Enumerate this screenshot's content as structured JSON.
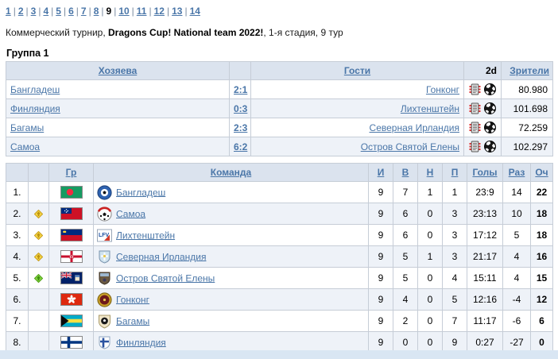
{
  "pagination": {
    "pages": [
      "1",
      "2",
      "3",
      "4",
      "5",
      "6",
      "7",
      "8",
      "9",
      "10",
      "11",
      "12",
      "13",
      "14"
    ],
    "current": "9"
  },
  "title": {
    "prefix": "Коммерческий турнир, ",
    "tournament": "Dragons Cup! National team 2022!",
    "suffix": ", 1-я стадия, 9 тур"
  },
  "group": {
    "heading": "Группа 1",
    "results": {
      "headers": {
        "hosts": "Хозяева",
        "guests": "Гости",
        "viewer2d": "2d",
        "spectators": "Зрители"
      },
      "icons": {
        "report": "match-report-icon",
        "ball": "soccer-ball-2d-icon"
      },
      "matches": [
        {
          "host": "Бангладеш",
          "score": "2:1",
          "guest": "Гонконг",
          "attendance": "80.980"
        },
        {
          "host": "Финляндия",
          "score": "0:3",
          "guest": "Лихтенштейн",
          "attendance": "101.698"
        },
        {
          "host": "Багамы",
          "score": "2:3",
          "guest": "Северная Ирландия",
          "attendance": "72.259"
        },
        {
          "host": "Самоа",
          "score": "6:2",
          "guest": "Остров Святой Елены",
          "attendance": "102.297"
        }
      ]
    },
    "standings": {
      "headers": {
        "group": "Гр",
        "team": "Команда",
        "played": "И",
        "won": "В",
        "drawn": "Н",
        "lost": "П",
        "goals": "Голы",
        "diff": "Раз",
        "points": "Оч"
      },
      "rows": [
        {
          "pos": "1.",
          "arrow": "",
          "flag": "bangladesh",
          "logo": "bangladesh",
          "team": "Бангладеш",
          "played": "9",
          "won": "7",
          "drawn": "1",
          "lost": "1",
          "goals": "23:9",
          "diff": "14",
          "points": "22"
        },
        {
          "pos": "2.",
          "arrow": "gold",
          "flag": "samoa",
          "logo": "samoa",
          "team": "Самоа",
          "played": "9",
          "won": "6",
          "drawn": "0",
          "lost": "3",
          "goals": "23:13",
          "diff": "10",
          "points": "18"
        },
        {
          "pos": "3.",
          "arrow": "gold",
          "flag": "liechtenstein",
          "logo": "liechtenstein",
          "team": "Лихтенштейн",
          "played": "9",
          "won": "6",
          "drawn": "0",
          "lost": "3",
          "goals": "17:12",
          "diff": "5",
          "points": "18"
        },
        {
          "pos": "4.",
          "arrow": "gold",
          "flag": "n_ireland",
          "logo": "n_ireland",
          "team": "Северная Ирландия",
          "played": "9",
          "won": "5",
          "drawn": "1",
          "lost": "3",
          "goals": "21:17",
          "diff": "4",
          "points": "16"
        },
        {
          "pos": "5.",
          "arrow": "green",
          "flag": "st_helena",
          "logo": "st_helena",
          "team": "Остров Святой Елены",
          "played": "9",
          "won": "5",
          "drawn": "0",
          "lost": "4",
          "goals": "15:11",
          "diff": "4",
          "points": "15"
        },
        {
          "pos": "6.",
          "arrow": "",
          "flag": "hong_kong",
          "logo": "hong_kong",
          "team": "Гонконг",
          "played": "9",
          "won": "4",
          "drawn": "0",
          "lost": "5",
          "goals": "12:16",
          "diff": "-4",
          "points": "12"
        },
        {
          "pos": "7.",
          "arrow": "",
          "flag": "bahamas",
          "logo": "bahamas",
          "team": "Багамы",
          "played": "9",
          "won": "2",
          "drawn": "0",
          "lost": "7",
          "goals": "11:17",
          "diff": "-6",
          "points": "6"
        },
        {
          "pos": "8.",
          "arrow": "",
          "flag": "finland",
          "logo": "finland",
          "team": "Финляндия",
          "played": "9",
          "won": "0",
          "drawn": "0",
          "lost": "9",
          "goals": "0:27",
          "diff": "-27",
          "points": "0"
        }
      ]
    }
  },
  "colors": {
    "link": "#4a76a8",
    "header_bg": "#dbe3ee",
    "row_alt_bg": "#eef2f8",
    "border": "#c6cdd7",
    "bottom_strip": "#d9e6f3",
    "gold_arrow": "#ffe14d",
    "green_arrow": "#8ce04a"
  }
}
